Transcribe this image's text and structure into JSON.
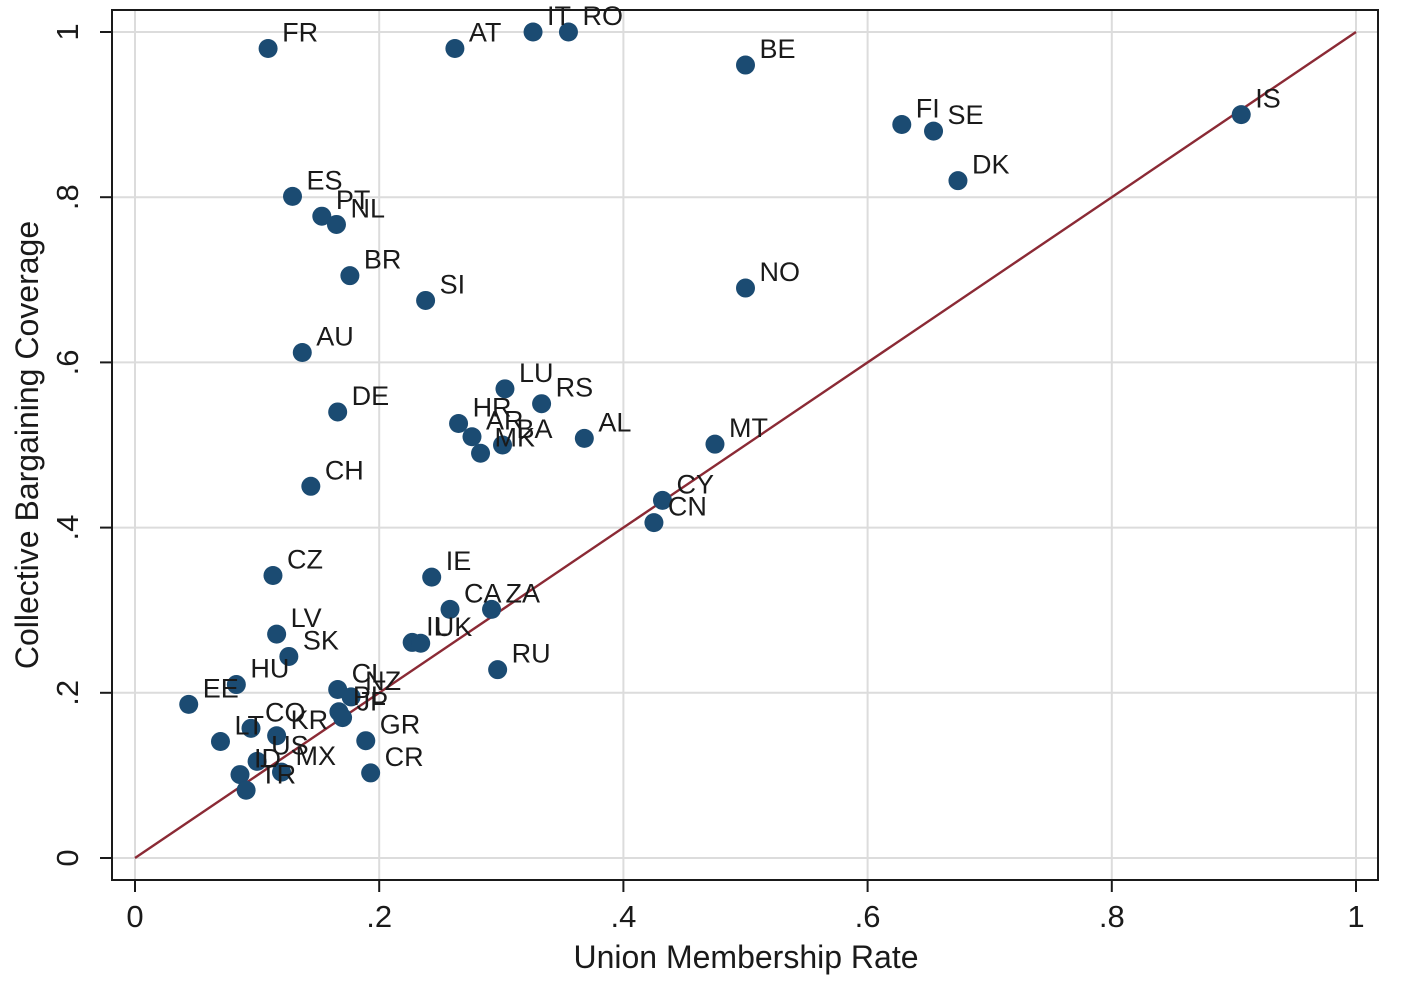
{
  "chart_data": {
    "type": "scatter",
    "xlabel": "Union Membership Rate",
    "ylabel": "Collective Bargaining Coverage",
    "xlim": [
      0,
      1
    ],
    "ylim": [
      0,
      1
    ],
    "x_ticks": [
      "0",
      ".2",
      ".4",
      ".6",
      ".8",
      "1"
    ],
    "y_ticks": [
      "0",
      ".2",
      ".4",
      ".6",
      ".8",
      "1"
    ],
    "grid": true,
    "reference_line": {
      "label": "",
      "from": [
        0,
        0
      ],
      "to": [
        1,
        1
      ],
      "color": "#8b2a35"
    },
    "marker_color": "#1b4b72",
    "points": [
      {
        "label": "FR",
        "x": 0.109,
        "y": 0.98
      },
      {
        "label": "AT",
        "x": 0.262,
        "y": 0.98
      },
      {
        "label": "IT",
        "x": 0.326,
        "y": 1.0
      },
      {
        "label": "RO",
        "x": 0.355,
        "y": 1.0
      },
      {
        "label": "BE",
        "x": 0.5,
        "y": 0.96
      },
      {
        "label": "FI",
        "x": 0.628,
        "y": 0.888
      },
      {
        "label": "SE",
        "x": 0.654,
        "y": 0.88
      },
      {
        "label": "IS",
        "x": 0.906,
        "y": 0.9
      },
      {
        "label": "DK",
        "x": 0.674,
        "y": 0.82
      },
      {
        "label": "ES",
        "x": 0.129,
        "y": 0.801
      },
      {
        "label": "PT",
        "x": 0.153,
        "y": 0.777
      },
      {
        "label": "NL",
        "x": 0.165,
        "y": 0.767
      },
      {
        "label": "BR",
        "x": 0.176,
        "y": 0.705
      },
      {
        "label": "SI",
        "x": 0.238,
        "y": 0.675
      },
      {
        "label": "NO",
        "x": 0.5,
        "y": 0.69
      },
      {
        "label": "AU",
        "x": 0.137,
        "y": 0.612
      },
      {
        "label": "DE",
        "x": 0.166,
        "y": 0.54
      },
      {
        "label": "LU",
        "x": 0.303,
        "y": 0.568
      },
      {
        "label": "RS",
        "x": 0.333,
        "y": 0.55
      },
      {
        "label": "HR",
        "x": 0.265,
        "y": 0.526
      },
      {
        "label": "AR",
        "x": 0.276,
        "y": 0.51
      },
      {
        "label": "BA",
        "x": 0.301,
        "y": 0.5
      },
      {
        "label": "MK",
        "x": 0.283,
        "y": 0.49
      },
      {
        "label": "AL",
        "x": 0.368,
        "y": 0.508
      },
      {
        "label": "MT",
        "x": 0.475,
        "y": 0.501
      },
      {
        "label": "CH",
        "x": 0.144,
        "y": 0.45
      },
      {
        "label": "CY",
        "x": 0.432,
        "y": 0.433
      },
      {
        "label": "CN",
        "x": 0.425,
        "y": 0.406
      },
      {
        "label": "CZ",
        "x": 0.113,
        "y": 0.342
      },
      {
        "label": "IE",
        "x": 0.243,
        "y": 0.34
      },
      {
        "label": "CA",
        "x": 0.258,
        "y": 0.301
      },
      {
        "label": "ZA",
        "x": 0.292,
        "y": 0.301
      },
      {
        "label": "IL",
        "x": 0.227,
        "y": 0.261
      },
      {
        "label": "UK",
        "x": 0.234,
        "y": 0.26
      },
      {
        "label": "RU",
        "x": 0.297,
        "y": 0.228
      },
      {
        "label": "LV",
        "x": 0.116,
        "y": 0.271
      },
      {
        "label": "SK",
        "x": 0.126,
        "y": 0.244
      },
      {
        "label": "HU",
        "x": 0.083,
        "y": 0.21
      },
      {
        "label": "EE",
        "x": 0.044,
        "y": 0.186
      },
      {
        "label": "CL",
        "x": 0.166,
        "y": 0.204
      },
      {
        "label": "NZ",
        "x": 0.177,
        "y": 0.195
      },
      {
        "label": "PL",
        "x": 0.167,
        "y": 0.177
      },
      {
        "label": "JP",
        "x": 0.17,
        "y": 0.17
      },
      {
        "label": "GR",
        "x": 0.189,
        "y": 0.142
      },
      {
        "label": "LT",
        "x": 0.07,
        "y": 0.141
      },
      {
        "label": "CO",
        "x": 0.095,
        "y": 0.157
      },
      {
        "label": "KR",
        "x": 0.116,
        "y": 0.148
      },
      {
        "label": "US",
        "x": 0.1,
        "y": 0.117
      },
      {
        "label": "MX",
        "x": 0.12,
        "y": 0.104
      },
      {
        "label": "ID",
        "x": 0.086,
        "y": 0.101
      },
      {
        "label": "TR",
        "x": 0.091,
        "y": 0.082
      },
      {
        "label": "CR",
        "x": 0.193,
        "y": 0.103
      }
    ]
  }
}
